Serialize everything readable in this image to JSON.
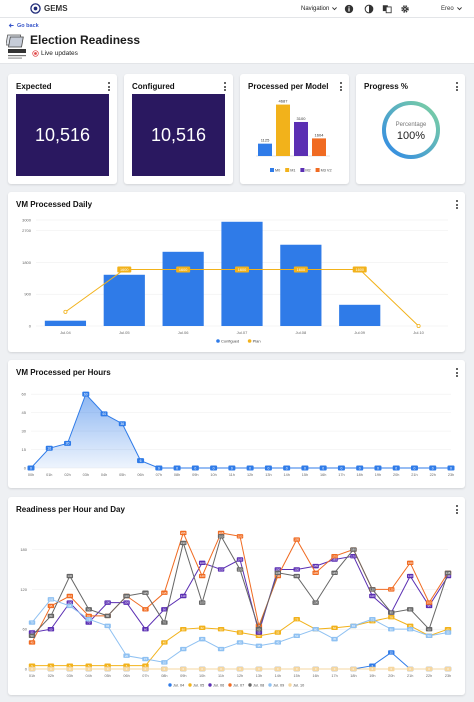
{
  "app": {
    "brand": "GEMS",
    "nav_label": "Navigation",
    "user_name": "Ereo",
    "go_back": "Go back",
    "title": "Election Readiness",
    "live_label": "Live updates"
  },
  "kpis": [
    {
      "title": "Expected",
      "value": "10,516"
    },
    {
      "title": "Configured",
      "value": "10,516"
    }
  ],
  "processed_model": {
    "title": "Processed per Model",
    "chart_data": {
      "type": "bar",
      "categories": [
        "M0",
        "M1",
        "M2",
        "M3 V2"
      ],
      "values": [
        1125,
        4687,
        3100,
        1604
      ],
      "data_labels": [
        "1125",
        "4687",
        "3100",
        "1604"
      ],
      "colors": [
        "#2f7be8",
        "#f2b21b",
        "#5b2fb3",
        "#f06b22"
      ]
    }
  },
  "progress": {
    "title": "Progress %",
    "label": "Percentage",
    "value_text": "100%",
    "value": 100
  },
  "daily": {
    "title": "VM Processed Daily",
    "chart_data": {
      "type": "bar",
      "categories": [
        "Jul.04",
        "Jul.05",
        "Jul.06",
        "Jul.07",
        "Jul.08",
        "Jul.09",
        "Jul.10"
      ],
      "series": [
        {
          "name": "Configued",
          "type": "bar",
          "values": [
            150,
            1450,
            2100,
            2950,
            2300,
            600,
            0
          ]
        },
        {
          "name": "Plan",
          "type": "line",
          "values": [
            400,
            1600,
            1600,
            1600,
            1600,
            1600,
            0
          ]
        }
      ],
      "plan_labels": [
        "",
        "1600",
        "1600",
        "1600",
        "1600",
        "1600",
        ""
      ],
      "y_ticks": [
        "3000",
        "2700",
        "1800",
        "900",
        "0"
      ],
      "y_tick_values": [
        3000,
        2700,
        1800,
        900,
        0
      ],
      "ylim": [
        0,
        3000
      ],
      "legend": "bottom",
      "colors": [
        "#2f7be8",
        "#f2b21b"
      ]
    }
  },
  "hours": {
    "title": "VM Processed per Hours",
    "chart_data": {
      "type": "area",
      "categories": [
        "00h",
        "01h",
        "02h",
        "03h",
        "04h",
        "05h",
        "06h",
        "07h",
        "08h",
        "09h",
        "10h",
        "11h",
        "12h",
        "13h",
        "14h",
        "15h",
        "16h",
        "17h",
        "18h",
        "19h",
        "20h",
        "21h",
        "22h",
        "23h"
      ],
      "values": [
        0,
        16,
        20,
        60,
        44,
        36,
        6,
        0,
        0,
        0,
        0,
        0,
        0,
        0,
        0,
        0,
        0,
        0,
        0,
        0,
        0,
        0,
        0,
        0
      ],
      "data_labels": [
        "0",
        "16",
        "20",
        "60",
        "44",
        "36",
        "6",
        "0",
        "0",
        "0",
        "0",
        "0",
        "0",
        "0",
        "0",
        "0",
        "0",
        "0",
        "0",
        "0",
        "0",
        "0",
        "0",
        "0"
      ],
      "y_ticks": [
        "60",
        "45",
        "30",
        "15",
        "0"
      ],
      "y_tick_values": [
        60,
        45,
        30,
        15,
        0
      ],
      "ylim": [
        0,
        65
      ],
      "color": "#2f7be8"
    }
  },
  "readiness": {
    "title": "Readiness per Hour and Day",
    "chart_data": {
      "type": "line",
      "categories": [
        "01h",
        "02h",
        "03h",
        "04h",
        "05h",
        "06h",
        "07h",
        "08h",
        "09h",
        "10h",
        "11h",
        "12h",
        "13h",
        "14h",
        "15h",
        "16h",
        "17h",
        "18h",
        "19h",
        "20h",
        "21h",
        "22h",
        "23h"
      ],
      "y_ticks": [
        "180",
        "120",
        "60",
        "0"
      ],
      "y_tick_values": [
        180,
        120,
        60,
        0
      ],
      "ylim": [
        0,
        220
      ],
      "legend": "bottom",
      "series": [
        {
          "name": "Jul. 04",
          "color": "#2f7be8",
          "values": [
            0,
            0,
            0,
            0,
            0,
            0,
            0,
            0,
            0,
            0,
            0,
            0,
            0,
            0,
            0,
            0,
            0,
            0,
            5,
            25,
            0,
            0,
            0
          ]
        },
        {
          "name": "Jul. 05",
          "color": "#f2b21b",
          "values": [
            5,
            5,
            5,
            5,
            5,
            5,
            5,
            40,
            60,
            62,
            60,
            55,
            50,
            55,
            75,
            60,
            62,
            65,
            72,
            78,
            65,
            50,
            60
          ]
        },
        {
          "name": "Jul. 06",
          "color": "#5b2fb3",
          "values": [
            55,
            60,
            100,
            70,
            100,
            100,
            60,
            90,
            110,
            160,
            150,
            165,
            55,
            150,
            150,
            155,
            165,
            170,
            110,
            85,
            140,
            95,
            140
          ]
        },
        {
          "name": "Jul. 07",
          "color": "#f06b22",
          "values": [
            40,
            95,
            110,
            80,
            80,
            110,
            90,
            115,
            205,
            140,
            205,
            200,
            65,
            140,
            195,
            145,
            170,
            180,
            120,
            120,
            160,
            100,
            145
          ]
        },
        {
          "name": "Jul. 08",
          "color": "#666666",
          "values": [
            50,
            80,
            140,
            90,
            80,
            110,
            115,
            70,
            190,
            100,
            200,
            150,
            60,
            145,
            140,
            100,
            145,
            180,
            120,
            85,
            90,
            60,
            145
          ]
        },
        {
          "name": "Jul. 09",
          "color": "#8fc1f2",
          "values": [
            70,
            105,
            95,
            75,
            65,
            20,
            15,
            10,
            30,
            45,
            30,
            40,
            35,
            40,
            50,
            60,
            45,
            65,
            75,
            60,
            60,
            50,
            55
          ]
        },
        {
          "name": "Jul. 10",
          "color": "#f6d7a0",
          "values": [
            0,
            0,
            0,
            0,
            0,
            0,
            0,
            0,
            0,
            0,
            0,
            0,
            0,
            0,
            0,
            0,
            0,
            0,
            0,
            0,
            0,
            0,
            0
          ]
        }
      ]
    }
  }
}
